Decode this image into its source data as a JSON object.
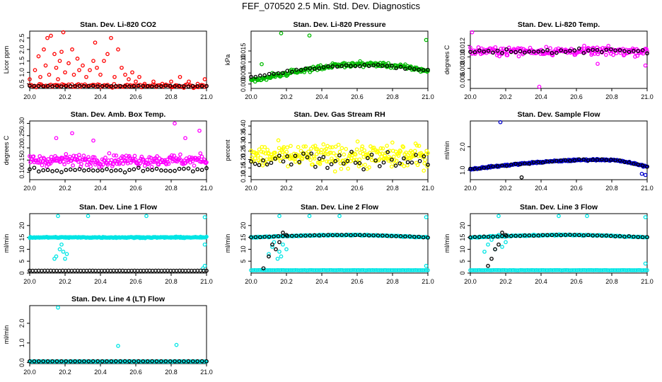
{
  "page": {
    "title": "FEF_070520  2.5 Min. Std. Dev. Diagnostics"
  },
  "chart_data": [
    {
      "type": "scatter",
      "title": "Stan. Dev. Li-820 CO2",
      "ylabel": "Licor ppm",
      "xlim": [
        20.0,
        21.0
      ],
      "ylim": [
        0.3,
        2.8
      ],
      "xticks": [
        "20.0",
        "20.2",
        "20.4",
        "20.6",
        "20.8",
        "21.0"
      ],
      "yticks": [
        0.5,
        1.0,
        1.5,
        2.0,
        2.5
      ],
      "ytick_labels": [
        "0.5",
        "1.0",
        "1.5",
        "2.0",
        "2.5"
      ],
      "series": [
        {
          "color": "#ff0000",
          "points": [
            [
              20.0,
              0.7
            ],
            [
              20.03,
              1.1
            ],
            [
              20.05,
              1.7
            ],
            [
              20.06,
              0.8
            ],
            [
              20.08,
              2.0
            ],
            [
              20.09,
              1.3
            ],
            [
              20.1,
              2.5
            ],
            [
              20.11,
              0.9
            ],
            [
              20.12,
              2.6
            ],
            [
              20.14,
              1.8
            ],
            [
              20.15,
              1.2
            ],
            [
              20.16,
              0.7
            ],
            [
              20.17,
              1.5
            ],
            [
              20.18,
              1.9
            ],
            [
              20.19,
              2.75
            ],
            [
              20.2,
              1.0
            ],
            [
              20.22,
              1.4
            ],
            [
              20.24,
              2.0
            ],
            [
              20.25,
              0.9
            ],
            [
              20.27,
              1.6
            ],
            [
              20.28,
              1.1
            ],
            [
              20.3,
              1.3
            ],
            [
              20.32,
              0.8
            ],
            [
              20.34,
              1.1
            ],
            [
              20.36,
              1.5
            ],
            [
              20.37,
              2.3
            ],
            [
              20.38,
              1.2
            ],
            [
              20.4,
              0.9
            ],
            [
              20.42,
              1.5
            ],
            [
              20.44,
              1.8
            ],
            [
              20.46,
              2.5
            ],
            [
              20.48,
              0.8
            ],
            [
              20.5,
              2.0
            ],
            [
              20.52,
              1.2
            ],
            [
              20.54,
              0.9
            ],
            [
              20.56,
              0.7
            ],
            [
              20.58,
              1.0
            ],
            [
              20.6,
              0.6
            ],
            [
              20.62,
              0.8
            ],
            [
              20.65,
              0.5
            ],
            [
              20.7,
              0.6
            ],
            [
              20.75,
              0.5
            ],
            [
              20.8,
              0.6
            ],
            [
              20.85,
              0.8
            ],
            [
              20.9,
              0.6
            ],
            [
              20.95,
              0.5
            ],
            [
              20.99,
              0.7
            ]
          ],
          "band": {
            "center": 0.42,
            "spread": 0.12,
            "count": 110
          }
        },
        {
          "color": "#000000",
          "band": {
            "center": 0.4,
            "spread": 0.03,
            "count": 40
          }
        }
      ]
    },
    {
      "type": "scatter",
      "title": "Stan. Dev. Li-820 Pressure",
      "ylabel": "kPa",
      "xlim": [
        20.0,
        21.0
      ],
      "ylim": [
        -0.002,
        0.024
      ],
      "xticks": [
        "20.0",
        "20.2",
        "20.4",
        "20.6",
        "20.8",
        "21.0"
      ],
      "yticks": [
        0.0,
        0.005,
        0.01,
        0.015
      ],
      "ytick_labels": [
        "0.000",
        "0.005",
        "0.010",
        "0.015"
      ],
      "series": [
        {
          "color": "#00bb00",
          "points": [
            [
              20.06,
              0.009
            ],
            [
              20.17,
              0.023
            ],
            [
              20.33,
              0.022
            ],
            [
              20.99,
              0.02
            ],
            [
              20.04,
              0.002
            ],
            [
              20.12,
              0.005
            ]
          ],
          "curve": {
            "type": "hump",
            "start": 0.001,
            "peak": 0.009,
            "peak_x": 20.65,
            "end": 0.006,
            "spread": 0.0018,
            "count": 220
          }
        },
        {
          "color": "#000000",
          "curve": {
            "type": "hump",
            "start": 0.003,
            "peak": 0.0085,
            "peak_x": 20.65,
            "end": 0.006,
            "spread": 0.0008,
            "count": 40
          }
        }
      ]
    },
    {
      "type": "scatter",
      "title": "Stan. Dev. Li-820 Temp.",
      "ylabel": "degrees C",
      "xlim": [
        20.0,
        21.0
      ],
      "ylim": [
        0.0045,
        0.0145
      ],
      "xticks": [
        "20.0",
        "20.2",
        "20.4",
        "20.6",
        "20.8",
        "21.0"
      ],
      "yticks": [
        0.006,
        0.008,
        0.01,
        0.012
      ],
      "ytick_labels": [
        "0.006",
        "0.008",
        "0.010",
        "0.012"
      ],
      "series": [
        {
          "color": "#ff00ff",
          "points": [
            [
              20.01,
              0.0143
            ],
            [
              20.39,
              0.0048
            ],
            [
              20.99,
              0.0085
            ],
            [
              20.72,
              0.0088
            ]
          ],
          "band": {
            "center": 0.011,
            "spread": 0.0012,
            "count": 220
          }
        },
        {
          "color": "#000000",
          "band": {
            "center": 0.011,
            "spread": 0.0007,
            "count": 40
          }
        }
      ]
    },
    {
      "type": "scatter",
      "title": "Stan. Dev. Amb. Box Temp.",
      "ylabel": "degrees C",
      "xlim": [
        20.0,
        21.0
      ],
      "ylim": [
        0.07,
        0.31
      ],
      "xticks": [
        "20.0",
        "20.2",
        "20.4",
        "20.6",
        "20.8",
        "21.0"
      ],
      "yticks": [
        0.1,
        0.15,
        0.2,
        0.25,
        0.3
      ],
      "ytick_labels": [
        "0.10",
        "0.15",
        "0.20",
        "0.25",
        "0.30"
      ],
      "series": [
        {
          "color": "#ff00ff",
          "points": [
            [
              20.82,
              0.3
            ],
            [
              20.96,
              0.27
            ],
            [
              20.24,
              0.26
            ],
            [
              20.15,
              0.24
            ],
            [
              20.36,
              0.23
            ],
            [
              20.88,
              0.24
            ]
          ],
          "band": {
            "center": 0.15,
            "spread": 0.04,
            "count": 230
          }
        },
        {
          "color": "#000000",
          "band": {
            "center": 0.11,
            "spread": 0.015,
            "count": 40
          }
        }
      ]
    },
    {
      "type": "scatter",
      "title": "Stan. Dev. Gas Stream RH",
      "ylabel": "percent",
      "xlim": [
        20.0,
        21.0
      ],
      "ylim": [
        0.08,
        0.43
      ],
      "xticks": [
        "20.0",
        "20.2",
        "20.4",
        "20.6",
        "20.8",
        "21.0"
      ],
      "yticks": [
        0.1,
        0.15,
        0.2,
        0.25,
        0.3,
        0.35,
        0.4
      ],
      "ytick_labels": [
        "0.10",
        "0.15",
        "0.20",
        "0.25",
        "0.30",
        "0.35",
        "0.40"
      ],
      "series": [
        {
          "color": "#ffff00",
          "band": {
            "center": 0.22,
            "spread": 0.12,
            "count": 260
          }
        },
        {
          "color": "#000000",
          "band": {
            "center": 0.2,
            "spread": 0.09,
            "count": 45
          }
        }
      ]
    },
    {
      "type": "scatter",
      "title": "Stan. Dev. Sample Flow",
      "ylabel": "ml/min",
      "xlim": [
        20.0,
        21.0
      ],
      "ylim": [
        0.6,
        3.1
      ],
      "xticks": [
        "20.0",
        "20.2",
        "20.4",
        "20.6",
        "20.8",
        "21.0"
      ],
      "yticks": [
        1.0,
        2.0
      ],
      "ytick_labels": [
        "1.0",
        "2.0"
      ],
      "series": [
        {
          "color": "#0000cc",
          "points": [
            [
              20.17,
              3.05
            ],
            [
              20.99,
              0.8
            ],
            [
              20.97,
              0.85
            ]
          ],
          "curve": {
            "type": "hump",
            "start": 1.05,
            "peak": 1.45,
            "peak_x": 20.75,
            "end": 1.15,
            "spread": 0.06,
            "count": 230
          }
        },
        {
          "color": "#000000",
          "points": [
            [
              20.29,
              0.7
            ]
          ],
          "curve": {
            "type": "hump",
            "start": 1.05,
            "peak": 1.45,
            "peak_x": 20.75,
            "end": 1.15,
            "spread": 0.05,
            "count": 40
          }
        }
      ]
    },
    {
      "type": "scatter",
      "title": "Stan. Dev. Line 1 Flow",
      "ylabel": "ml/min",
      "xlim": [
        20.0,
        21.0
      ],
      "ylim": [
        0,
        25
      ],
      "xticks": [
        "20.0",
        "20.2",
        "20.4",
        "20.6",
        "20.8",
        "21.0"
      ],
      "yticks": [
        0,
        5,
        10,
        15,
        20
      ],
      "ytick_labels": [
        "0",
        "5",
        "10",
        "15",
        "20"
      ],
      "series": [
        {
          "color": "#00e5e5",
          "points": [
            [
              20.16,
              24
            ],
            [
              20.33,
              24
            ],
            [
              20.66,
              24
            ],
            [
              20.99,
              23.5
            ],
            [
              20.14,
              6
            ],
            [
              20.15,
              7
            ],
            [
              20.18,
              12
            ],
            [
              20.19,
              9
            ],
            [
              20.2,
              6
            ],
            [
              20.21,
              8
            ],
            [
              20.17,
              10
            ],
            [
              20.99,
              3
            ],
            [
              20.98,
              2
            ],
            [
              20.99,
              12
            ]
          ],
          "band": {
            "center": 15,
            "spread": 0.4,
            "count": 240
          }
        },
        {
          "color": "#000000",
          "band": {
            "center": 1,
            "spread": 0.05,
            "count": 60
          }
        }
      ]
    },
    {
      "type": "scatter",
      "title": "Stan. Dev. Line 2 Flow",
      "ylabel": "ml/min",
      "xlim": [
        20.0,
        21.0
      ],
      "ylim": [
        0,
        25
      ],
      "xticks": [
        "20.0",
        "20.2",
        "20.4",
        "20.6",
        "20.8",
        "21.0"
      ],
      "yticks": [
        5,
        10,
        15,
        20
      ],
      "ytick_labels": [
        "5",
        "10",
        "15",
        "20"
      ],
      "series": [
        {
          "color": "#00e5e5",
          "points": [
            [
              20.16,
              24
            ],
            [
              20.33,
              24
            ],
            [
              20.5,
              24
            ],
            [
              20.99,
              23.5
            ],
            [
              20.1,
              8
            ],
            [
              20.12,
              11
            ],
            [
              20.13,
              13
            ],
            [
              20.15,
              6
            ],
            [
              20.16,
              9
            ],
            [
              20.17,
              7
            ],
            [
              20.18,
              12
            ],
            [
              20.2,
              10
            ],
            [
              20.99,
              3
            ]
          ],
          "curve": {
            "type": "hump",
            "start": 15,
            "peak": 16,
            "peak_x": 20.55,
            "end": 15,
            "spread": 0.4,
            "count": 200
          }
        },
        {
          "color": "#00e5e5",
          "band": {
            "center": 1.2,
            "spread": 0.05,
            "count": 100
          }
        },
        {
          "color": "#000000",
          "points": [
            [
              20.07,
              2
            ],
            [
              20.1,
              7
            ],
            [
              20.12,
              12
            ],
            [
              20.14,
              10
            ],
            [
              20.16,
              13
            ],
            [
              20.18,
              17
            ],
            [
              20.2,
              16
            ]
          ],
          "curve": {
            "type": "hump",
            "start": 15,
            "peak": 16,
            "peak_x": 20.55,
            "end": 15,
            "spread": 0.2,
            "count": 40
          }
        }
      ]
    },
    {
      "type": "scatter",
      "title": "Stan. Dev. Line 3 Flow",
      "ylabel": "ml/min",
      "xlim": [
        20.0,
        21.0
      ],
      "ylim": [
        0,
        25
      ],
      "xticks": [
        "20.0",
        "20.2",
        "20.4",
        "20.6",
        "20.8",
        "21.0"
      ],
      "yticks": [
        0,
        5,
        10,
        15,
        20
      ],
      "ytick_labels": [
        "0",
        "5",
        "10",
        "15",
        "20"
      ],
      "series": [
        {
          "color": "#00e5e5",
          "points": [
            [
              20.16,
              24
            ],
            [
              20.5,
              24
            ],
            [
              20.66,
              24
            ],
            [
              20.99,
              23.5
            ],
            [
              20.08,
              9
            ],
            [
              20.1,
              12
            ],
            [
              20.12,
              14
            ],
            [
              20.14,
              10
            ],
            [
              20.16,
              16
            ],
            [
              20.18,
              11
            ],
            [
              20.2,
              13
            ],
            [
              20.99,
              4
            ]
          ],
          "curve": {
            "type": "hump",
            "start": 15,
            "peak": 16,
            "peak_x": 20.55,
            "end": 15,
            "spread": 0.4,
            "count": 200
          }
        },
        {
          "color": "#00e5e5",
          "band": {
            "center": 1.2,
            "spread": 0.05,
            "count": 100
          }
        },
        {
          "color": "#000000",
          "points": [
            [
              20.1,
              3
            ],
            [
              20.12,
              6
            ],
            [
              20.14,
              10
            ],
            [
              20.16,
              12
            ],
            [
              20.18,
              17
            ],
            [
              20.2,
              16
            ]
          ],
          "curve": {
            "type": "hump",
            "start": 15,
            "peak": 16,
            "peak_x": 20.55,
            "end": 15,
            "spread": 0.2,
            "count": 40
          }
        }
      ]
    },
    {
      "type": "scatter",
      "title": "Stan. Dev. Line 4 (LT) Flow",
      "ylabel": "ml/min",
      "xlim": [
        20.0,
        21.0
      ],
      "ylim": [
        -0.05,
        2.9
      ],
      "xticks": [
        "20.0",
        "20.2",
        "20.4",
        "20.6",
        "20.8",
        "21.0"
      ],
      "yticks": [
        0.0,
        1.0,
        2.0
      ],
      "ytick_labels": [
        "0.0",
        "1.0",
        "2.0"
      ],
      "series": [
        {
          "color": "#00e5e5",
          "points": [
            [
              20.16,
              2.8
            ],
            [
              20.5,
              0.85
            ],
            [
              20.83,
              0.9
            ]
          ],
          "band": {
            "center": 0.06,
            "spread": 0.01,
            "count": 200
          }
        },
        {
          "color": "#000000",
          "band": {
            "center": 0.07,
            "spread": 0.005,
            "count": 40
          }
        }
      ]
    }
  ]
}
